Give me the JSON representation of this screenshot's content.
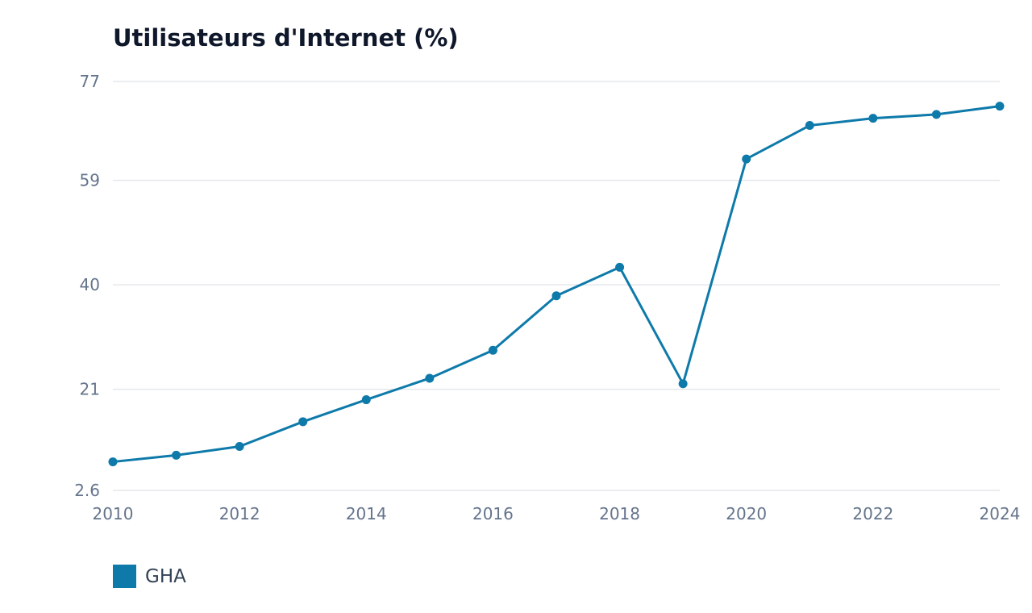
{
  "chart_data": {
    "type": "line",
    "title": "Utilisateurs d'Internet (%)",
    "xlabel": "",
    "ylabel": "",
    "x": [
      2010,
      2011,
      2012,
      2013,
      2014,
      2015,
      2016,
      2017,
      2018,
      2019,
      2020,
      2021,
      2022,
      2023,
      2024
    ],
    "series": [
      {
        "name": "GHA",
        "color": "#0e7aaa",
        "values": [
          7.8,
          9.0,
          10.6,
          15.1,
          19.1,
          23.0,
          28.1,
          38.0,
          43.2,
          22.0,
          62.9,
          69.0,
          70.3,
          71.0,
          72.5
        ]
      }
    ],
    "xlim": [
      2010,
      2024
    ],
    "ylim": [
      2.6,
      77
    ],
    "x_ticks": [
      "2010",
      "2012",
      "2014",
      "2016",
      "2018",
      "2020",
      "2022",
      "2024"
    ],
    "y_ticks": [
      "2.6",
      "21",
      "40",
      "59",
      "77"
    ],
    "grid": "horizontal",
    "legend_position": "bottom-left"
  }
}
